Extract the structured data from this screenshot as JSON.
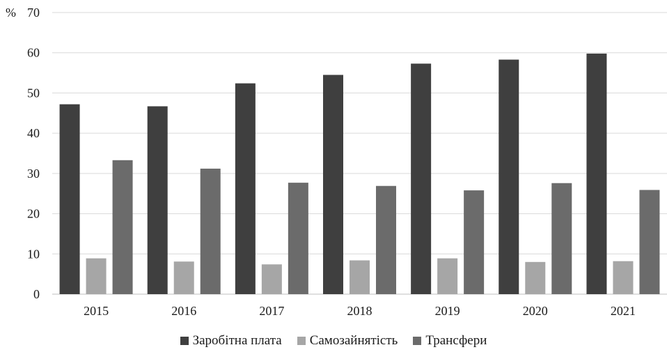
{
  "chart_data": {
    "type": "bar",
    "unit_label": "%",
    "categories": [
      "2015",
      "2016",
      "2017",
      "2018",
      "2019",
      "2020",
      "2021"
    ],
    "series": [
      {
        "name": "Заробітна плата",
        "color": "#3f3f3f",
        "values": [
          47.2,
          46.7,
          52.4,
          54.5,
          57.3,
          58.3,
          59.8
        ]
      },
      {
        "name": "Самозайнятість",
        "color": "#a6a6a6",
        "values": [
          8.9,
          8.1,
          7.4,
          8.4,
          8.9,
          8.0,
          8.2
        ]
      },
      {
        "name": "Трансфери",
        "color": "#6b6b6b",
        "values": [
          33.3,
          31.2,
          27.7,
          26.9,
          25.8,
          27.6,
          25.9
        ]
      }
    ],
    "ylim": [
      0,
      70
    ],
    "yticks": [
      0,
      10,
      20,
      30,
      40,
      50,
      60,
      70
    ],
    "grid": true,
    "legend_position": "bottom"
  }
}
